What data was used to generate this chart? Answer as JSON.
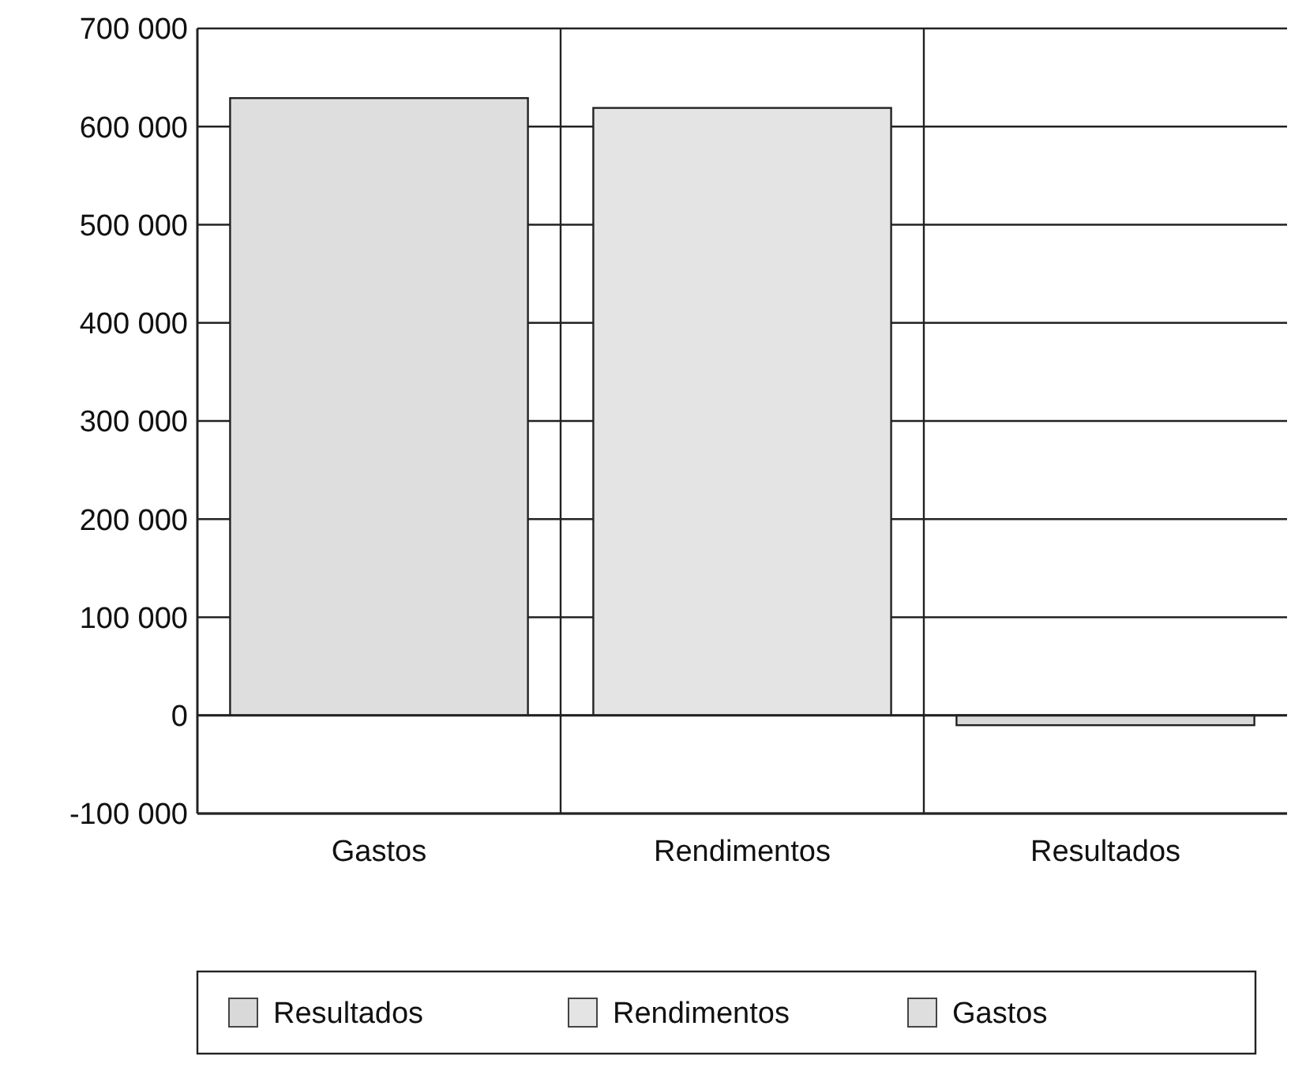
{
  "chart_data": {
    "type": "bar",
    "categories": [
      "Gastos",
      "Rendimentos",
      "Resultados"
    ],
    "series": [
      {
        "name": "Resultados",
        "color": "#d9d9d9",
        "values": [
          null,
          null,
          -10000
        ]
      },
      {
        "name": "Rendimentos",
        "color": "#e4e4e4",
        "values": [
          null,
          619000,
          null
        ]
      },
      {
        "name": "Gastos",
        "color": "#dedede",
        "values": [
          629000,
          null,
          null
        ]
      }
    ],
    "ylim": [
      -100000,
      700000
    ],
    "yticks": [
      {
        "value": -100000,
        "label": "-100 000"
      },
      {
        "value": 0,
        "label": "0"
      },
      {
        "value": 100000,
        "label": "100 000"
      },
      {
        "value": 200000,
        "label": "200 000"
      },
      {
        "value": 300000,
        "label": "300 000"
      },
      {
        "value": 400000,
        "label": "400 000"
      },
      {
        "value": 500000,
        "label": "500 000"
      },
      {
        "value": 600000,
        "label": "600 000"
      },
      {
        "value": 700000,
        "label": "700 000"
      }
    ],
    "grid": true,
    "legend": "bottom"
  }
}
